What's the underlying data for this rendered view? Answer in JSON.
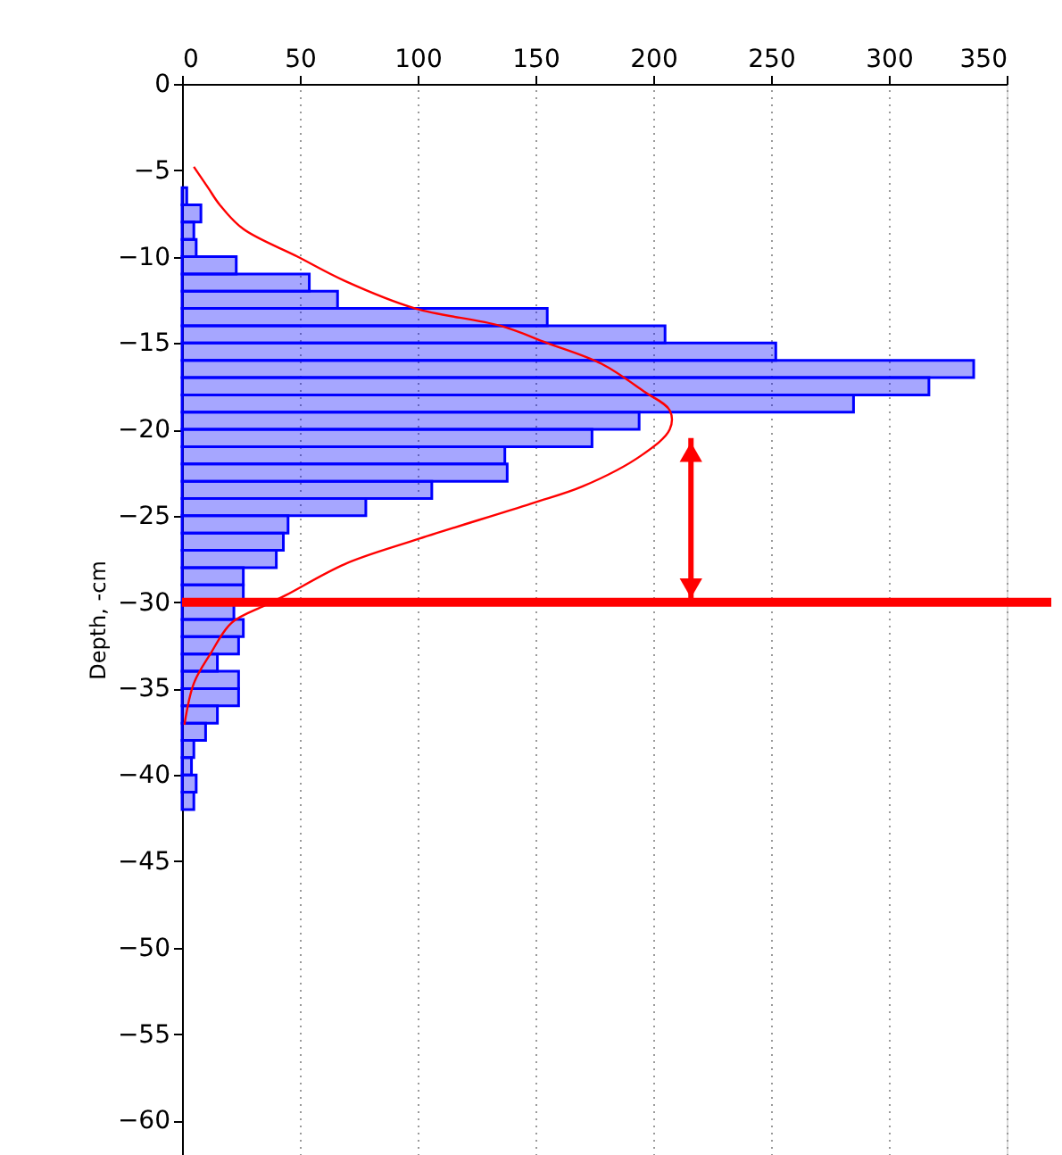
{
  "chart_data": {
    "type": "histogram",
    "orientation": "horizontal",
    "ylabel": "Depth, -cm",
    "bins": [
      -6,
      -7,
      -8,
      -9,
      -10,
      -11,
      -12,
      -13,
      -14,
      -15,
      -16,
      -17,
      -18,
      -19,
      -20,
      -21,
      -22,
      -23,
      -24,
      -25,
      -26,
      -27,
      -28,
      -29,
      -30,
      -31,
      -32,
      -33,
      -34,
      -35,
      -36,
      -37,
      -38,
      -39,
      -40,
      -41,
      -42
    ],
    "series": [
      {
        "type": "histogram",
        "color": "#0000ff",
        "values": [
          2,
          8,
          5,
          6,
          23,
          54,
          66,
          155,
          205,
          252,
          336,
          317,
          285,
          194,
          174,
          137,
          138,
          106,
          78,
          45,
          43,
          40,
          26,
          26,
          22,
          26,
          24,
          15,
          24,
          24,
          15,
          10,
          5,
          4,
          6,
          5
        ]
      },
      {
        "type": "line",
        "color": "#ff0000",
        "x": [
          -4.8,
          -6,
          -7,
          -8.4,
          -10,
          -11.4,
          -13,
          -14,
          -15,
          -16.2,
          -17.8,
          -18.9,
          -20,
          -21.5,
          -23.3,
          -24.3,
          -26.4,
          -27.8,
          -29.6,
          -30.2,
          -31.2,
          -33,
          -34.7,
          -37.1
        ],
        "values": [
          5,
          11,
          16,
          26,
          49,
          69,
          99,
          135,
          155,
          178,
          196,
          207,
          207,
          195,
          170,
          148,
          99,
          69,
          44,
          35,
          21,
          12,
          5,
          1
        ]
      }
    ],
    "xlim": [
      0,
      350
    ],
    "xticks": [
      0,
      50,
      100,
      150,
      200,
      250,
      300,
      350
    ],
    "ylim": [
      -62,
      0
    ],
    "yticks": [
      0,
      -5,
      -10,
      -15,
      -20,
      -25,
      -30,
      -35,
      -40,
      -45,
      -50,
      -55,
      -60
    ],
    "grid": "x",
    "ref_lines": [
      {
        "axis": "y",
        "value": -30,
        "color": "#ff0000"
      }
    ]
  }
}
